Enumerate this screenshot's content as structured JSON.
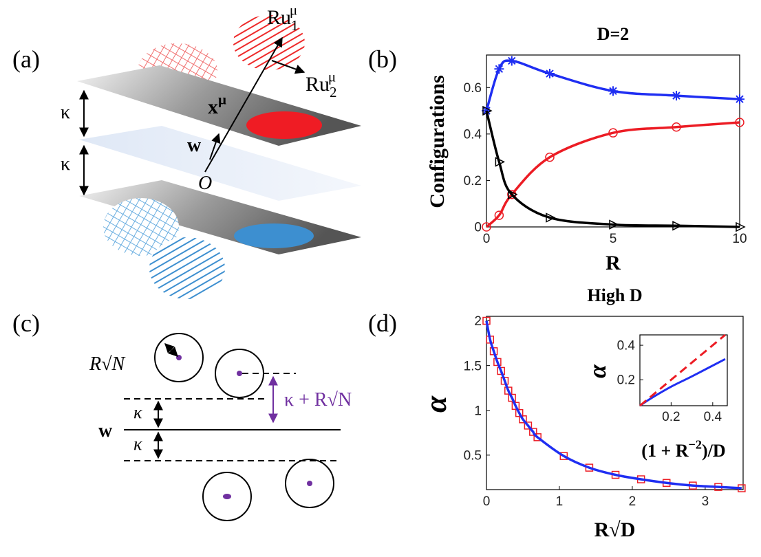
{
  "panel_labels": [
    "(a)",
    "(b)",
    "(c)",
    "(d)"
  ],
  "diagram_a": {
    "u1_label": {
      "text": "Ru",
      "sub": "1",
      "sup": "μ"
    },
    "u2_label": {
      "text": "Ru",
      "sub": "2",
      "sup": "μ"
    },
    "x_label": {
      "text": "x",
      "sup": "μ"
    },
    "kappa_top": "κ",
    "kappa_bottom": "κ",
    "w_label": "w",
    "origin_label": "O"
  },
  "diagram_c": {
    "radius_label": "R√N",
    "margin_label": "κ + R√N",
    "kappa_top": "κ",
    "kappa_bottom": "κ",
    "w_label": "w"
  },
  "chart_data": [
    {
      "type": "line",
      "title": "D=2",
      "x_label": "R",
      "y_label": "Configurations",
      "x": [
        0,
        0.5,
        1,
        2.5,
        5,
        7.5,
        10
      ],
      "xlim": [
        0,
        10
      ],
      "xticks": [
        0,
        5,
        10
      ],
      "ylim": [
        0,
        0.74
      ],
      "yticks": [
        0,
        0.2,
        0.4,
        0.6
      ],
      "series": [
        {
          "color": "#1f2ef2",
          "marker": "star",
          "values": [
            0.5,
            0.68,
            0.715,
            0.66,
            0.585,
            0.565,
            0.55
          ]
        },
        {
          "color": "#ec1c24",
          "marker": "circle",
          "values": [
            0,
            0.05,
            0.14,
            0.3,
            0.405,
            0.43,
            0.45
          ]
        },
        {
          "color": "#000000",
          "marker": "triangle",
          "values": [
            0.5,
            0.28,
            0.14,
            0.04,
            0.01,
            0.005,
            0
          ]
        }
      ]
    },
    {
      "type": "line",
      "title": "High D",
      "x_label": "R√D",
      "y_label": "α",
      "x": [
        0,
        0.05,
        0.1,
        0.15,
        0.2,
        0.25,
        0.3,
        0.35,
        0.4,
        0.45,
        0.5,
        0.57,
        0.64,
        0.7,
        1.06,
        1.41,
        1.77,
        2.12,
        2.47,
        2.83,
        3.18,
        3.5
      ],
      "xlim": [
        0,
        3.52
      ],
      "xticks": [
        0,
        1,
        2,
        3
      ],
      "ylim": [
        0.115,
        2.05
      ],
      "yticks": [
        0.5,
        1,
        1.5,
        2
      ],
      "series": [
        {
          "color": "#ec1c24",
          "marker": "square",
          "line": false,
          "values": [
            2,
            1.79,
            1.66,
            1.54,
            1.44,
            1.33,
            1.22,
            1.14,
            1.05,
            0.97,
            0.9,
            0.83,
            0.76,
            0.7,
            0.49,
            0.36,
            0.28,
            0.23,
            0.19,
            0.16,
            0.145,
            0.13
          ]
        },
        {
          "color": "#1f2ef2",
          "values": [
            2,
            1.79,
            1.66,
            1.54,
            1.44,
            1.33,
            1.22,
            1.14,
            1.05,
            0.97,
            0.9,
            0.83,
            0.76,
            0.7,
            0.49,
            0.36,
            0.28,
            0.23,
            0.19,
            0.16,
            0.145,
            0.13
          ]
        }
      ]
    },
    {
      "type": "line",
      "x_label": {
        "text": "(1 + R",
        "sup": "−2",
        "tail": ")/D"
      },
      "y_label": "α",
      "xlim": [
        0.05,
        0.47
      ],
      "xticks": [
        0.2,
        0.4
      ],
      "ylim": [
        0.05,
        0.46
      ],
      "yticks": [
        0.2,
        0.4
      ],
      "series": [
        {
          "color": "#1f2ef2",
          "x": [
            0.05,
            0.1,
            0.2,
            0.3,
            0.46
          ],
          "values": [
            0.05,
            0.09,
            0.16,
            0.22,
            0.32
          ]
        },
        {
          "color": "#ec1c24",
          "dashed": true,
          "x": [
            0.05,
            0.46
          ],
          "values": [
            0.05,
            0.46
          ]
        }
      ]
    }
  ]
}
